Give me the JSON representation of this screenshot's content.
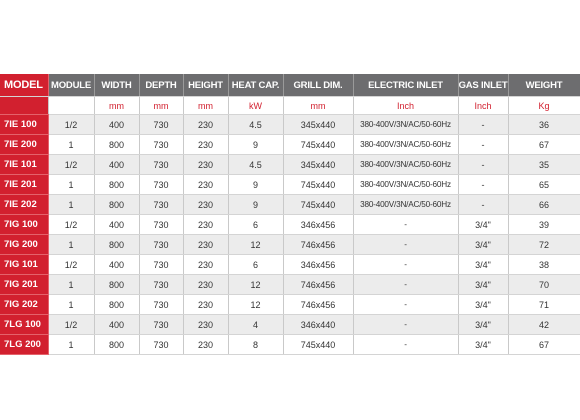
{
  "table": {
    "headers": [
      "MODEL",
      "MODULE",
      "WIDTH",
      "DEPTH",
      "HEIGHT",
      "HEAT CAP.",
      "GRILL DIM.",
      "ELECTRIC INLET",
      "GAS INLET",
      "WEIGHT"
    ],
    "units": [
      "",
      "",
      "mm",
      "mm",
      "mm",
      "kW",
      "mm",
      "Inch",
      "Inch",
      "Kg"
    ],
    "rows": [
      [
        "7IE 100",
        "1/2",
        "400",
        "730",
        "230",
        "4.5",
        "345x440",
        "380-400V/3N/AC/50-60Hz",
        "-",
        "36"
      ],
      [
        "7IE 200",
        "1",
        "800",
        "730",
        "230",
        "9",
        "745x440",
        "380-400V/3N/AC/50-60Hz",
        "-",
        "67"
      ],
      [
        "7IE 101",
        "1/2",
        "400",
        "730",
        "230",
        "4.5",
        "345x440",
        "380-400V/3N/AC/50-60Hz",
        "-",
        "35"
      ],
      [
        "7IE 201",
        "1",
        "800",
        "730",
        "230",
        "9",
        "745x440",
        "380-400V/3N/AC/50-60Hz",
        "-",
        "65"
      ],
      [
        "7IE 202",
        "1",
        "800",
        "730",
        "230",
        "9",
        "745x440",
        "380-400V/3N/AC/50-60Hz",
        "-",
        "66"
      ],
      [
        "7IG 100",
        "1/2",
        "400",
        "730",
        "230",
        "6",
        "346x456",
        "-",
        "3/4\"",
        "39"
      ],
      [
        "7IG 200",
        "1",
        "800",
        "730",
        "230",
        "12",
        "746x456",
        "-",
        "3/4\"",
        "72"
      ],
      [
        "7IG 101",
        "1/2",
        "400",
        "730",
        "230",
        "6",
        "346x456",
        "-",
        "3/4\"",
        "38"
      ],
      [
        "7IG 201",
        "1",
        "800",
        "730",
        "230",
        "12",
        "746x456",
        "-",
        "3/4\"",
        "70"
      ],
      [
        "7IG 202",
        "1",
        "800",
        "730",
        "230",
        "12",
        "746x456",
        "-",
        "3/4\"",
        "71"
      ],
      [
        "7LG 100",
        "1/2",
        "400",
        "730",
        "230",
        "4",
        "346x440",
        "-",
        "3/4\"",
        "42"
      ],
      [
        "7LG 200",
        "1",
        "800",
        "730",
        "230",
        "8",
        "745x440",
        "-",
        "3/4\"",
        "67"
      ]
    ]
  },
  "colors": {
    "model_red": "#d2202f",
    "header_gray": "#6d6d6f",
    "units_red": "#d2202f",
    "row_stripe": "#ececec"
  }
}
